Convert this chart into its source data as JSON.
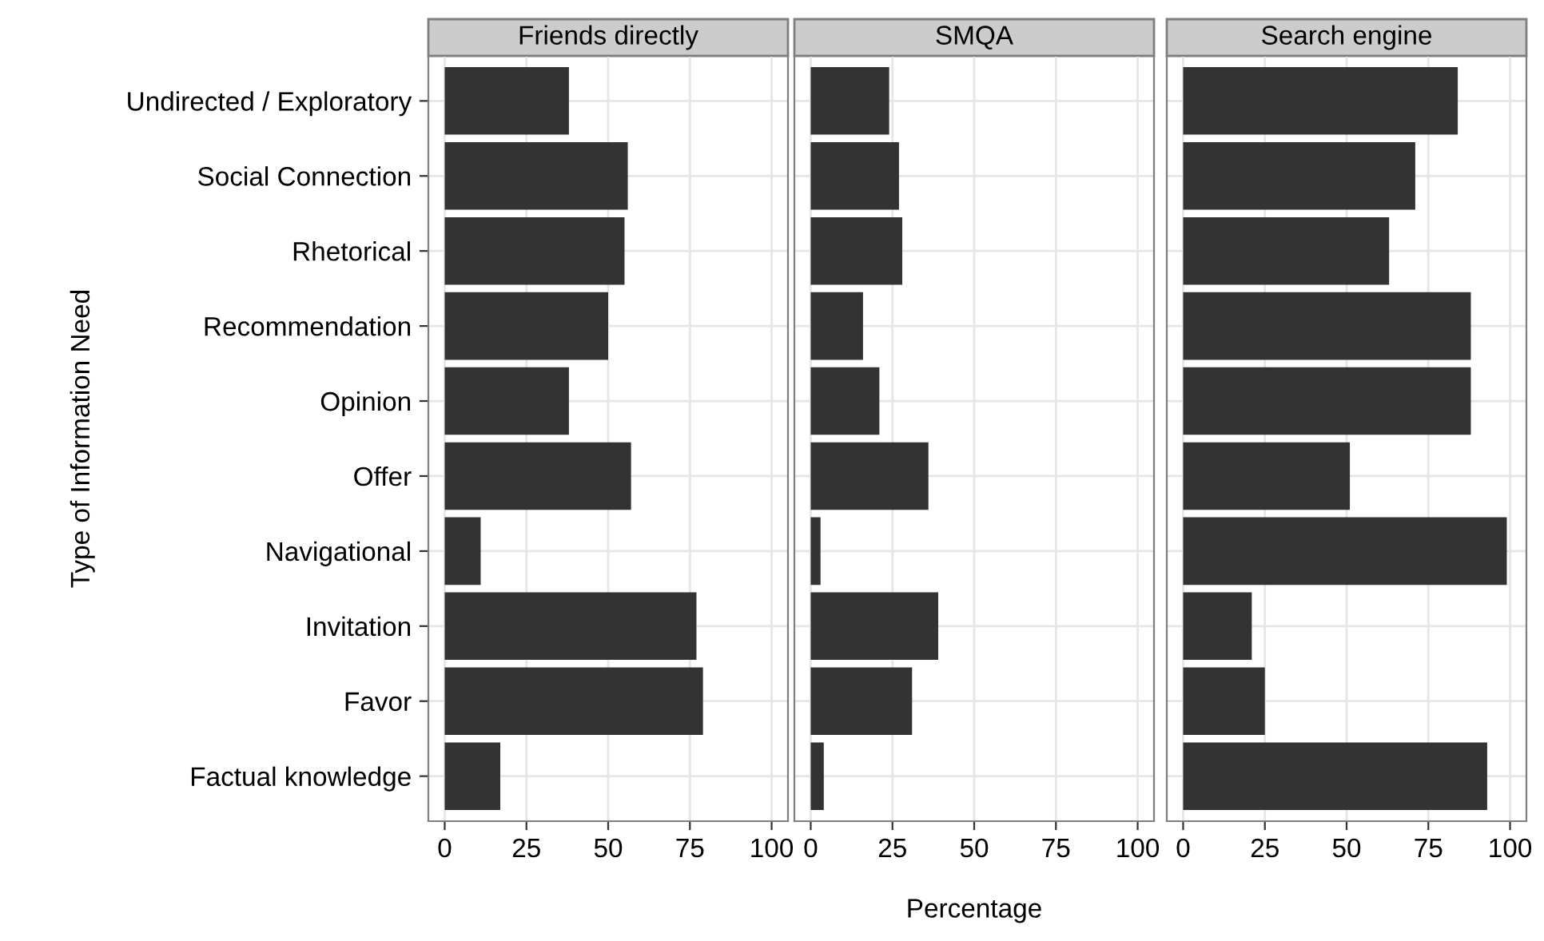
{
  "chart_data": [
    {
      "type": "bar",
      "orientation": "horizontal",
      "title": "Friends directly",
      "ylabel": "Type of Information Need",
      "categories": [
        "Undirected / Exploratory",
        "Social Connection",
        "Rhetorical",
        "Recommendation",
        "Opinion",
        "Offer",
        "Navigational",
        "Invitation",
        "Favor",
        "Factual knowledge"
      ],
      "values": [
        38,
        56,
        55,
        50,
        38,
        57,
        11,
        77,
        79,
        17
      ],
      "color": "#333333",
      "xlim": [
        -5,
        105
      ],
      "xticks": [
        0,
        25,
        50,
        75,
        100
      ],
      "grid": true
    },
    {
      "type": "bar",
      "orientation": "horizontal",
      "title": "SMQA",
      "xlabel": "Percentage",
      "categories": [
        null,
        null,
        null,
        null,
        null,
        null,
        null,
        null,
        null,
        null
      ],
      "values": [
        24,
        27,
        28,
        16,
        21,
        36,
        3,
        39,
        31,
        4
      ],
      "color": "#333333",
      "xlim": [
        -5,
        105
      ],
      "xticks": [
        0,
        25,
        50,
        75,
        100
      ],
      "grid": true,
      "tick_labels": "x"
    },
    {
      "type": "bar",
      "orientation": "horizontal",
      "title": "Search engine",
      "categories": [
        null,
        null,
        null,
        null,
        null,
        null,
        null,
        null,
        null,
        null
      ],
      "values": [
        84,
        71,
        63,
        88,
        88,
        51,
        99,
        21,
        25,
        93
      ],
      "color": "#333333",
      "xlim": [
        -5,
        105
      ],
      "xticks": [
        0,
        25,
        50,
        75,
        100
      ],
      "grid": true,
      "tick_labels": "x"
    }
  ]
}
